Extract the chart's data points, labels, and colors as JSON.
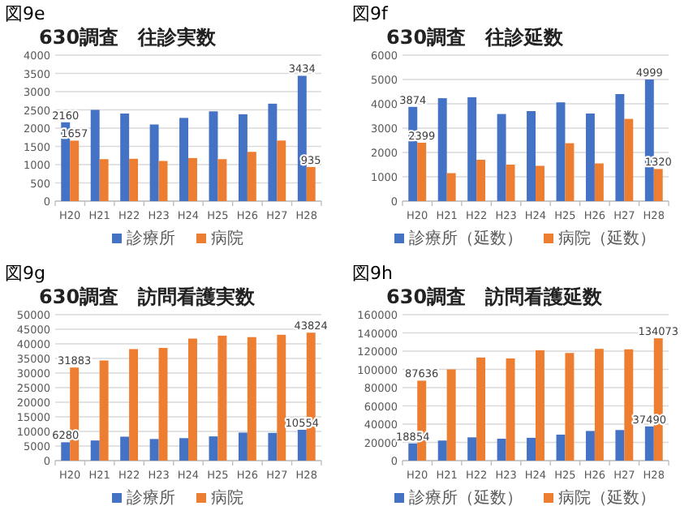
{
  "chart_data": [
    {
      "type": "bar",
      "annotations": [
        "図9e"
      ],
      "title": "630調査　往診実数",
      "categories": [
        "H20",
        "H21",
        "H22",
        "H23",
        "H24",
        "H25",
        "H26",
        "H27",
        "H28"
      ],
      "series": [
        {
          "name": "診療所",
          "color": "#4472c4",
          "values": [
            2160,
            2500,
            2400,
            2100,
            2280,
            2460,
            2380,
            2670,
            3434
          ],
          "value_labels": [
            "2160",
            null,
            null,
            null,
            null,
            null,
            null,
            null,
            "3434"
          ]
        },
        {
          "name": "病院",
          "color": "#ed7d31",
          "values": [
            1657,
            1150,
            1160,
            1100,
            1180,
            1150,
            1350,
            1660,
            935
          ],
          "value_labels": [
            "1657",
            null,
            null,
            null,
            null,
            null,
            null,
            null,
            "935"
          ]
        }
      ],
      "ylim": [
        0,
        4000
      ],
      "yticks": [
        0,
        500,
        1000,
        1500,
        2000,
        2500,
        3000,
        3500,
        4000
      ],
      "grid": "y",
      "legend": "bottom"
    },
    {
      "type": "bar",
      "annotations": [
        "図9f"
      ],
      "title": "630調査　往診延数",
      "categories": [
        "H20",
        "H21",
        "H22",
        "H23",
        "H24",
        "H25",
        "H26",
        "H27",
        "H28"
      ],
      "series": [
        {
          "name": "診療所（延数）",
          "color": "#4472c4",
          "values": [
            3874,
            4230,
            4270,
            3580,
            3700,
            4060,
            3600,
            4400,
            4999
          ],
          "value_labels": [
            "3874",
            null,
            null,
            null,
            null,
            null,
            null,
            null,
            "4999"
          ]
        },
        {
          "name": "病院（延数）",
          "color": "#ed7d31",
          "values": [
            2399,
            1150,
            1700,
            1500,
            1450,
            2380,
            1550,
            3380,
            1320
          ],
          "value_labels": [
            "2399",
            null,
            null,
            null,
            null,
            null,
            null,
            null,
            "1320"
          ]
        }
      ],
      "ylim": [
        0,
        6000
      ],
      "yticks": [
        0,
        1000,
        2000,
        3000,
        4000,
        5000,
        6000
      ],
      "grid": "y",
      "legend": "bottom"
    },
    {
      "type": "bar",
      "annotations": [
        "図9g"
      ],
      "title": "630調査　訪問看護実数",
      "categories": [
        "H20",
        "H21",
        "H22",
        "H23",
        "H24",
        "H25",
        "H26",
        "H27",
        "H28"
      ],
      "series": [
        {
          "name": "診療所",
          "color": "#4472c4",
          "values": [
            6280,
            6900,
            8200,
            7400,
            7700,
            8300,
            9600,
            9500,
            10554
          ],
          "value_labels": [
            "6280",
            null,
            null,
            null,
            null,
            null,
            null,
            null,
            "10554"
          ]
        },
        {
          "name": "病院",
          "color": "#ed7d31",
          "values": [
            31883,
            34300,
            38200,
            38600,
            41800,
            42800,
            42300,
            43100,
            43824
          ],
          "value_labels": [
            "31883",
            null,
            null,
            null,
            null,
            null,
            null,
            null,
            "43824"
          ]
        }
      ],
      "ylim": [
        0,
        50000
      ],
      "yticks": [
        0,
        5000,
        10000,
        15000,
        20000,
        25000,
        30000,
        35000,
        40000,
        45000,
        50000
      ],
      "grid": "y",
      "legend": "bottom"
    },
    {
      "type": "bar",
      "annotations": [
        "図9h"
      ],
      "title": "630調査　訪問看護延数",
      "categories": [
        "H20",
        "H21",
        "H22",
        "H23",
        "H24",
        "H25",
        "H26",
        "H27",
        "H28"
      ],
      "series": [
        {
          "name": "診療所（延数）",
          "color": "#4472c4",
          "values": [
            18854,
            22000,
            25500,
            24000,
            25000,
            28500,
            32500,
            33500,
            37490
          ],
          "value_labels": [
            "18854",
            null,
            null,
            null,
            null,
            null,
            null,
            null,
            "37490"
          ]
        },
        {
          "name": "病院（延数）",
          "color": "#ed7d31",
          "values": [
            87636,
            100000,
            113000,
            112000,
            121000,
            118000,
            122500,
            122000,
            134073
          ],
          "value_labels": [
            "87636",
            null,
            null,
            null,
            null,
            null,
            null,
            null,
            "134073"
          ]
        }
      ],
      "ylim": [
        0,
        160000
      ],
      "yticks": [
        0,
        20000,
        40000,
        60000,
        80000,
        100000,
        120000,
        140000,
        160000
      ],
      "grid": "y",
      "legend": "bottom"
    }
  ]
}
